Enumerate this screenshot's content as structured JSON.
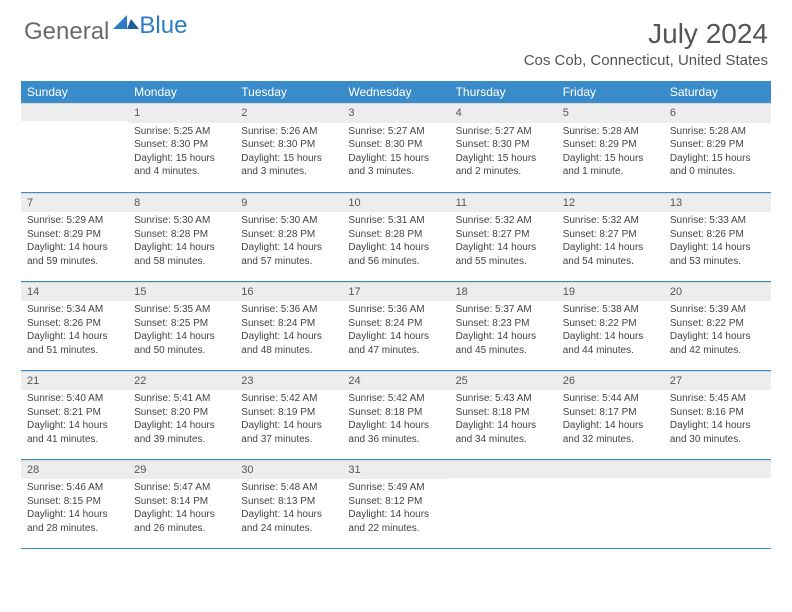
{
  "brand": {
    "part1": "General",
    "part2": "Blue"
  },
  "title": "July 2024",
  "location": "Cos Cob, Connecticut, United States",
  "colors": {
    "header_bg": "#3a8bc9",
    "header_text": "#ffffff",
    "daynum_bg": "#ededed",
    "body_text": "#444444",
    "rule": "#3a8bc9",
    "brand_blue": "#2d7dc6"
  },
  "weekdays": [
    "Sunday",
    "Monday",
    "Tuesday",
    "Wednesday",
    "Thursday",
    "Friday",
    "Saturday"
  ],
  "weeks": [
    [
      {
        "n": "",
        "lines": []
      },
      {
        "n": "1",
        "lines": [
          "Sunrise: 5:25 AM",
          "Sunset: 8:30 PM",
          "Daylight: 15 hours and 4 minutes."
        ]
      },
      {
        "n": "2",
        "lines": [
          "Sunrise: 5:26 AM",
          "Sunset: 8:30 PM",
          "Daylight: 15 hours and 3 minutes."
        ]
      },
      {
        "n": "3",
        "lines": [
          "Sunrise: 5:27 AM",
          "Sunset: 8:30 PM",
          "Daylight: 15 hours and 3 minutes."
        ]
      },
      {
        "n": "4",
        "lines": [
          "Sunrise: 5:27 AM",
          "Sunset: 8:30 PM",
          "Daylight: 15 hours and 2 minutes."
        ]
      },
      {
        "n": "5",
        "lines": [
          "Sunrise: 5:28 AM",
          "Sunset: 8:29 PM",
          "Daylight: 15 hours and 1 minute."
        ]
      },
      {
        "n": "6",
        "lines": [
          "Sunrise: 5:28 AM",
          "Sunset: 8:29 PM",
          "Daylight: 15 hours and 0 minutes."
        ]
      }
    ],
    [
      {
        "n": "7",
        "lines": [
          "Sunrise: 5:29 AM",
          "Sunset: 8:29 PM",
          "Daylight: 14 hours and 59 minutes."
        ]
      },
      {
        "n": "8",
        "lines": [
          "Sunrise: 5:30 AM",
          "Sunset: 8:28 PM",
          "Daylight: 14 hours and 58 minutes."
        ]
      },
      {
        "n": "9",
        "lines": [
          "Sunrise: 5:30 AM",
          "Sunset: 8:28 PM",
          "Daylight: 14 hours and 57 minutes."
        ]
      },
      {
        "n": "10",
        "lines": [
          "Sunrise: 5:31 AM",
          "Sunset: 8:28 PM",
          "Daylight: 14 hours and 56 minutes."
        ]
      },
      {
        "n": "11",
        "lines": [
          "Sunrise: 5:32 AM",
          "Sunset: 8:27 PM",
          "Daylight: 14 hours and 55 minutes."
        ]
      },
      {
        "n": "12",
        "lines": [
          "Sunrise: 5:32 AM",
          "Sunset: 8:27 PM",
          "Daylight: 14 hours and 54 minutes."
        ]
      },
      {
        "n": "13",
        "lines": [
          "Sunrise: 5:33 AM",
          "Sunset: 8:26 PM",
          "Daylight: 14 hours and 53 minutes."
        ]
      }
    ],
    [
      {
        "n": "14",
        "lines": [
          "Sunrise: 5:34 AM",
          "Sunset: 8:26 PM",
          "Daylight: 14 hours and 51 minutes."
        ]
      },
      {
        "n": "15",
        "lines": [
          "Sunrise: 5:35 AM",
          "Sunset: 8:25 PM",
          "Daylight: 14 hours and 50 minutes."
        ]
      },
      {
        "n": "16",
        "lines": [
          "Sunrise: 5:36 AM",
          "Sunset: 8:24 PM",
          "Daylight: 14 hours and 48 minutes."
        ]
      },
      {
        "n": "17",
        "lines": [
          "Sunrise: 5:36 AM",
          "Sunset: 8:24 PM",
          "Daylight: 14 hours and 47 minutes."
        ]
      },
      {
        "n": "18",
        "lines": [
          "Sunrise: 5:37 AM",
          "Sunset: 8:23 PM",
          "Daylight: 14 hours and 45 minutes."
        ]
      },
      {
        "n": "19",
        "lines": [
          "Sunrise: 5:38 AM",
          "Sunset: 8:22 PM",
          "Daylight: 14 hours and 44 minutes."
        ]
      },
      {
        "n": "20",
        "lines": [
          "Sunrise: 5:39 AM",
          "Sunset: 8:22 PM",
          "Daylight: 14 hours and 42 minutes."
        ]
      }
    ],
    [
      {
        "n": "21",
        "lines": [
          "Sunrise: 5:40 AM",
          "Sunset: 8:21 PM",
          "Daylight: 14 hours and 41 minutes."
        ]
      },
      {
        "n": "22",
        "lines": [
          "Sunrise: 5:41 AM",
          "Sunset: 8:20 PM",
          "Daylight: 14 hours and 39 minutes."
        ]
      },
      {
        "n": "23",
        "lines": [
          "Sunrise: 5:42 AM",
          "Sunset: 8:19 PM",
          "Daylight: 14 hours and 37 minutes."
        ]
      },
      {
        "n": "24",
        "lines": [
          "Sunrise: 5:42 AM",
          "Sunset: 8:18 PM",
          "Daylight: 14 hours and 36 minutes."
        ]
      },
      {
        "n": "25",
        "lines": [
          "Sunrise: 5:43 AM",
          "Sunset: 8:18 PM",
          "Daylight: 14 hours and 34 minutes."
        ]
      },
      {
        "n": "26",
        "lines": [
          "Sunrise: 5:44 AM",
          "Sunset: 8:17 PM",
          "Daylight: 14 hours and 32 minutes."
        ]
      },
      {
        "n": "27",
        "lines": [
          "Sunrise: 5:45 AM",
          "Sunset: 8:16 PM",
          "Daylight: 14 hours and 30 minutes."
        ]
      }
    ],
    [
      {
        "n": "28",
        "lines": [
          "Sunrise: 5:46 AM",
          "Sunset: 8:15 PM",
          "Daylight: 14 hours and 28 minutes."
        ]
      },
      {
        "n": "29",
        "lines": [
          "Sunrise: 5:47 AM",
          "Sunset: 8:14 PM",
          "Daylight: 14 hours and 26 minutes."
        ]
      },
      {
        "n": "30",
        "lines": [
          "Sunrise: 5:48 AM",
          "Sunset: 8:13 PM",
          "Daylight: 14 hours and 24 minutes."
        ]
      },
      {
        "n": "31",
        "lines": [
          "Sunrise: 5:49 AM",
          "Sunset: 8:12 PM",
          "Daylight: 14 hours and 22 minutes."
        ]
      },
      {
        "n": "",
        "lines": []
      },
      {
        "n": "",
        "lines": []
      },
      {
        "n": "",
        "lines": []
      }
    ]
  ]
}
